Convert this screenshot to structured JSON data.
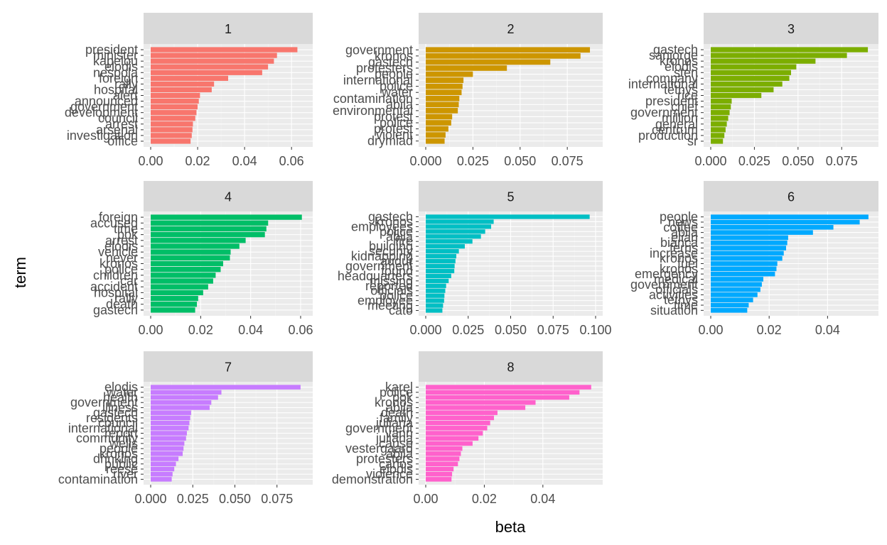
{
  "chart_data": {
    "type": "bar",
    "orientation": "horizontal",
    "facet_layout": "3 columns, independent scales",
    "xlabel": "beta",
    "ylabel": "term",
    "legend": "none",
    "grid": true,
    "panels": [
      {
        "strip": "1",
        "color": "#F8766D",
        "xlim": [
          0,
          0.066
        ],
        "xticks": [
          0,
          0.02,
          0.04,
          0.06
        ],
        "xtick_labels": [
          "0.00",
          "0.02",
          "0.04",
          "0.06"
        ],
        "terms": [
          "president",
          "minister",
          "kapelou",
          "elodis",
          "nespola",
          "foreign",
          "rally",
          "hospital",
          "alert",
          "announced",
          "government",
          "development",
          "council",
          "arrest",
          "arsenal",
          "investigation",
          "office"
        ],
        "values": [
          0.0625,
          0.0538,
          0.0525,
          0.05,
          0.0475,
          0.033,
          0.027,
          0.026,
          0.021,
          0.0205,
          0.02,
          0.0195,
          0.019,
          0.018,
          0.0178,
          0.0175,
          0.017
        ]
      },
      {
        "strip": "2",
        "color": "#CD9600",
        "xlim": [
          0,
          0.09
        ],
        "xticks": [
          0,
          0.025,
          0.05,
          0.075
        ],
        "xtick_labels": [
          "0.000",
          "0.025",
          "0.050",
          "0.075"
        ],
        "terms": [
          "government",
          "kronos",
          "gastech",
          "protesters",
          "people",
          "international",
          "police",
          "water",
          "contamination",
          "abila",
          "environmental",
          "protest",
          "police",
          "protest",
          "violent",
          "drymiad"
        ],
        "values": [
          0.087,
          0.082,
          0.066,
          0.043,
          0.025,
          0.02,
          0.0195,
          0.019,
          0.0178,
          0.0175,
          0.017,
          0.014,
          0.0135,
          0.012,
          0.0105,
          0.01
        ]
      },
      {
        "strip": "3",
        "color": "#7CAE00",
        "xlim": [
          0,
          0.092
        ],
        "xticks": [
          0,
          0.025,
          0.05,
          0.075
        ],
        "xtick_labels": [
          "0.000",
          "0.025",
          "0.050",
          "0.075"
        ],
        "terms": [
          "gastech",
          "sanjorge",
          "kronos",
          "elodis",
          "sten",
          "company",
          "international",
          "tethys",
          "rice",
          "president",
          "chief",
          "government",
          "million",
          "general",
          "centrum",
          "production",
          "sr"
        ],
        "values": [
          0.09,
          0.078,
          0.06,
          0.049,
          0.046,
          0.045,
          0.041,
          0.036,
          0.029,
          0.012,
          0.0115,
          0.0108,
          0.01,
          0.0092,
          0.0085,
          0.0078,
          0.007
        ]
      },
      {
        "strip": "4",
        "color": "#00BE67",
        "xlim": [
          0,
          0.062
        ],
        "xticks": [
          0,
          0.02,
          0.04,
          0.06
        ],
        "xtick_labels": [
          "0.00",
          "0.02",
          "0.04",
          "0.06"
        ],
        "terms": [
          "foreign",
          "accused",
          "time",
          "pok",
          "arrest",
          "elodis",
          "vehicle",
          "never",
          "kronos",
          "police",
          "children",
          "car",
          "accident",
          "hospital",
          "rally",
          "death",
          "gastech"
        ],
        "values": [
          0.0605,
          0.047,
          0.0463,
          0.0457,
          0.038,
          0.0355,
          0.032,
          0.0317,
          0.029,
          0.028,
          0.026,
          0.025,
          0.023,
          0.021,
          0.019,
          0.0185,
          0.0178
        ]
      },
      {
        "strip": "5",
        "color": "#00BFC4",
        "xlim": [
          0,
          0.1
        ],
        "xticks": [
          0,
          0.025,
          0.05,
          0.075,
          0.1
        ],
        "xtick_labels": [
          "0.000",
          "0.025",
          "0.050",
          "0.075",
          "0.100"
        ],
        "terms": [
          "gastech",
          "kronos",
          "employees",
          "police",
          "abila",
          "fire",
          "building",
          "security",
          "kidnapping",
          "audur",
          "government",
          "found",
          "headquarters",
          "missing",
          "reported",
          "officials",
          "police",
          "employee",
          "meeting",
          "cato"
        ],
        "values": [
          0.0965,
          0.04,
          0.0385,
          0.035,
          0.0325,
          0.0275,
          0.023,
          0.0195,
          0.018,
          0.0175,
          0.017,
          0.0168,
          0.015,
          0.0135,
          0.012,
          0.0115,
          0.011,
          0.0108,
          0.0102,
          0.0098
        ]
      },
      {
        "strip": "6",
        "color": "#00A9FF",
        "xlim": [
          0,
          0.055
        ],
        "xticks": [
          0,
          0.02,
          0.04
        ],
        "xtick_labels": [
          "0.00",
          "0.02",
          "0.04"
        ],
        "terms": [
          "people",
          "news",
          "coffee",
          "abila",
          "elian",
          "bianca",
          "ferris",
          "increase",
          "kronos",
          "fuel",
          "kronos",
          "emergency",
          "medical",
          "government",
          "officials",
          "activities",
          "tethys",
          "time",
          "situation"
        ],
        "values": [
          0.054,
          0.051,
          0.042,
          0.035,
          0.0265,
          0.0262,
          0.0258,
          0.025,
          0.0245,
          0.0228,
          0.0225,
          0.022,
          0.018,
          0.0175,
          0.017,
          0.016,
          0.0145,
          0.013,
          0.0125
        ]
      },
      {
        "strip": "7",
        "color": "#C77CFF",
        "xlim": [
          0,
          0.092
        ],
        "xticks": [
          0,
          0.025,
          0.05,
          0.075
        ],
        "xtick_labels": [
          "0.000",
          "0.025",
          "0.050",
          "0.075"
        ],
        "terms": [
          "elodis",
          "water",
          "health",
          "government",
          "illness",
          "gastech",
          "residents",
          "council",
          "international",
          "report",
          "community",
          "wells",
          "people",
          "kronos",
          "drinking",
          "public",
          "reese",
          "river",
          "contamination"
        ],
        "values": [
          0.089,
          0.042,
          0.04,
          0.036,
          0.035,
          0.024,
          0.0235,
          0.023,
          0.0225,
          0.0215,
          0.021,
          0.02,
          0.0195,
          0.019,
          0.0165,
          0.015,
          0.014,
          0.013,
          0.0125
        ]
      },
      {
        "strip": "8",
        "color": "#FF61CC",
        "xlim": [
          0,
          0.058
        ],
        "xticks": [
          0,
          0.02,
          0.04
        ],
        "xtick_labels": [
          "0.00",
          "0.02",
          "0.04"
        ],
        "terms": [
          "karel",
          "police",
          "pok",
          "kronos",
          "abila",
          "death",
          "family",
          "juliana",
          "government",
          "vann",
          "juliana",
          "cause",
          "vestergaard",
          "abila",
          "protesters",
          "carlos",
          "elodis",
          "violence",
          "demonstration"
        ],
        "values": [
          0.0565,
          0.0525,
          0.049,
          0.0375,
          0.034,
          0.0245,
          0.0233,
          0.022,
          0.021,
          0.0195,
          0.018,
          0.016,
          0.0125,
          0.012,
          0.0115,
          0.011,
          0.0095,
          0.009,
          0.0088
        ]
      }
    ]
  }
}
